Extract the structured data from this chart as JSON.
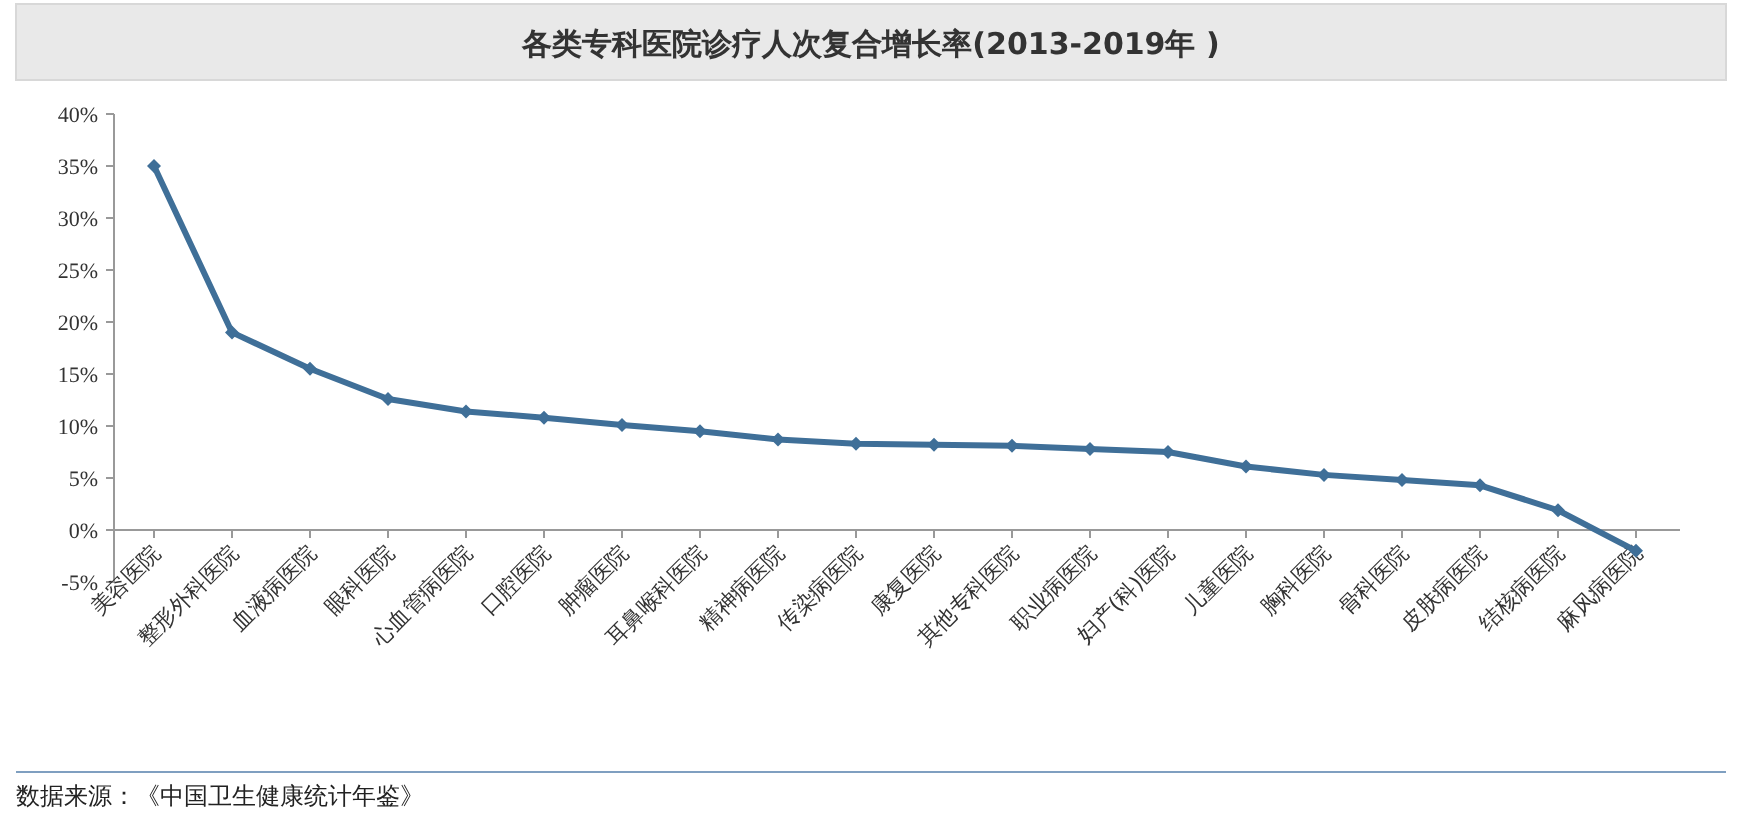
{
  "chart_data": {
    "type": "line",
    "title": "各类专科医院诊疗人次复合增长率(2013-2019年 )",
    "categories": [
      "美容医院",
      "整形外科医院",
      "血液病医院",
      "眼科医院",
      "心血管病医院",
      "口腔医院",
      "肿瘤医院",
      "耳鼻喉科医院",
      "精神病医院",
      "传染病医院",
      "康复医院",
      "其他专科医院",
      "职业病医院",
      "妇产(科)医院",
      "儿童医院",
      "胸科医院",
      "骨科医院",
      "皮肤病医院",
      "结核病医院",
      "麻风病医院"
    ],
    "series": [
      {
        "color": "#3f6f98",
        "values": [
          35,
          19,
          15.5,
          12.6,
          11.4,
          10.8,
          10.1,
          9.5,
          8.7,
          8.3,
          8.2,
          8.1,
          7.8,
          7.5,
          6.1,
          5.3,
          4.8,
          4.3,
          1.9,
          -2
        ]
      }
    ],
    "ylim": [
      -5,
      40
    ],
    "yticks": [
      {
        "value": -5,
        "label": "-5%"
      },
      {
        "value": 0,
        "label": "0%"
      },
      {
        "value": 5,
        "label": "5%"
      },
      {
        "value": 10,
        "label": "10%"
      },
      {
        "value": 15,
        "label": "15%"
      },
      {
        "value": 20,
        "label": "20%"
      },
      {
        "value": 25,
        "label": "25%"
      },
      {
        "value": 30,
        "label": "30%"
      },
      {
        "value": 35,
        "label": "35%"
      },
      {
        "value": 40,
        "label": "40%"
      }
    ],
    "marker": "diamond",
    "annotations": [
      "数据来源：《中国卫生健康统计年鉴》"
    ]
  }
}
